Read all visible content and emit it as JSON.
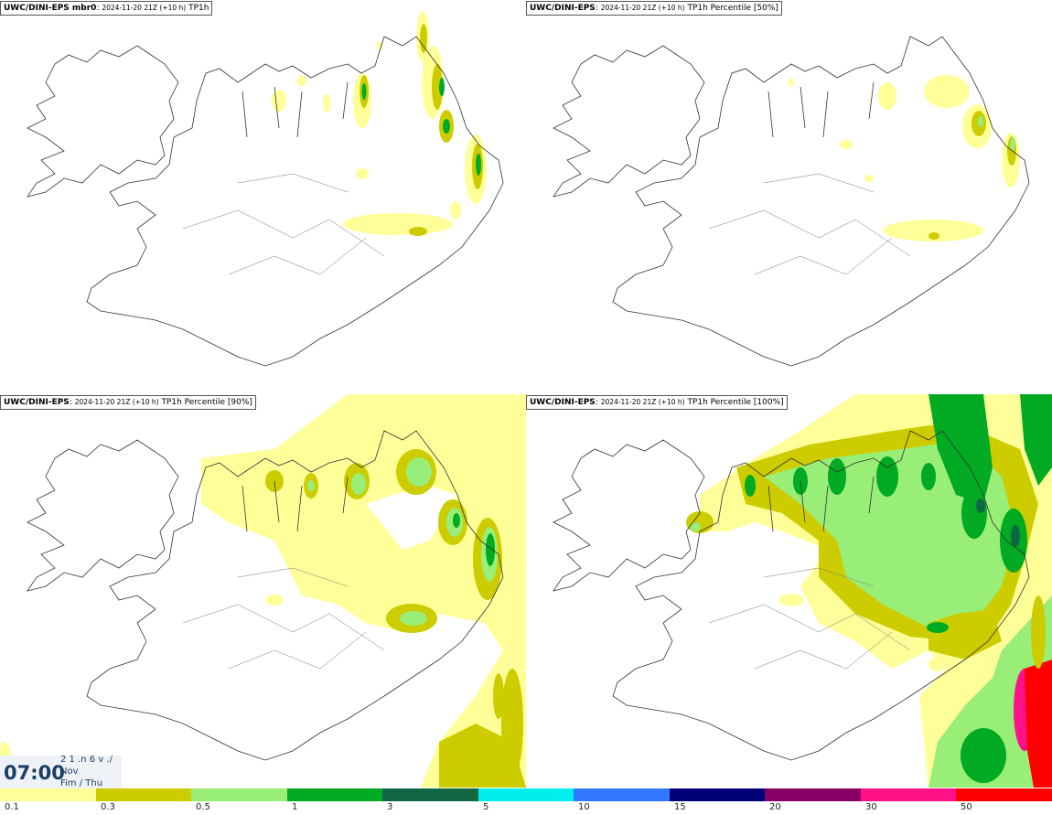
{
  "panels": [
    {
      "model": "UWC/DINI-EPS mbr0",
      "run": "2024-11-20 21Z (+10 h)",
      "field": "TP1h"
    },
    {
      "model": "UWC/DINI-EPS",
      "run": "2024-11-20 21Z (+10 h)",
      "field": "TP1h Percentile [50%]"
    },
    {
      "model": "UWC/DINI-EPS",
      "run": "2024-11-20 21Z (+10 h)",
      "field": "TP1h Percentile [90%]"
    },
    {
      "model": "UWC/DINI-EPS",
      "run": "2024-11-20 21Z (+10 h)",
      "field": "TP1h Percentile [100%]"
    }
  ],
  "legend": {
    "ticks": [
      "0.1",
      "0.3",
      "0.5",
      "1",
      "3",
      "5",
      "10",
      "15",
      "20",
      "30",
      "50"
    ],
    "colors": [
      "#ffff99",
      "#cccc00",
      "#99ee77",
      "#00aa22",
      "#116644",
      "#00eeee",
      "#3377ff",
      "#000077",
      "#880066",
      "#ff1188",
      "#ff0000"
    ]
  },
  "timestamp": {
    "time": "07:00",
    "line1": "2 1 .n 6 v ./",
    "line2": "Nov",
    "line3": "Fim / Thu"
  },
  "colors": {
    "light_yellow": "#ffff99",
    "olive": "#cccc00",
    "light_green": "#99ee77",
    "green": "#00aa22",
    "dark_green": "#116644",
    "coast": "#333333"
  }
}
